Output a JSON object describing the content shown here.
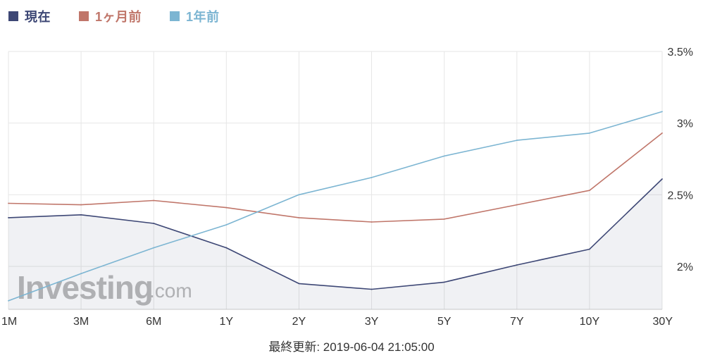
{
  "chart_data": {
    "type": "line",
    "categories": [
      "1M",
      "3M",
      "6M",
      "1Y",
      "2Y",
      "3Y",
      "5Y",
      "7Y",
      "10Y",
      "30Y"
    ],
    "series": [
      {
        "name": "現在",
        "color": "#3d4775",
        "area": true,
        "values": [
          2.34,
          2.36,
          2.3,
          2.13,
          1.88,
          1.84,
          1.89,
          2.01,
          2.12,
          2.61
        ]
      },
      {
        "name": "1ヶ月前",
        "color": "#c0766a",
        "area": false,
        "values": [
          2.44,
          2.43,
          2.46,
          2.41,
          2.34,
          2.31,
          2.33,
          2.43,
          2.53,
          2.93
        ]
      },
      {
        "name": "1年前",
        "color": "#7cb5d2",
        "area": false,
        "values": [
          1.76,
          1.95,
          2.13,
          2.29,
          2.5,
          2.62,
          2.77,
          2.88,
          2.93,
          3.08
        ]
      }
    ],
    "y_ticks": [
      2.0,
      2.5,
      3.0,
      3.5
    ],
    "y_tick_labels": [
      "2%",
      "2.5%",
      "3%",
      "3.5%"
    ],
    "ylim": [
      1.7,
      3.5
    ],
    "y_axis_position": "right",
    "grid": true,
    "legend_position": "top-left"
  },
  "watermark": {
    "main": "Investing",
    "sub": ".com"
  },
  "footer": {
    "last_updated": "最終更新: 2019-06-04 21:05:00"
  }
}
